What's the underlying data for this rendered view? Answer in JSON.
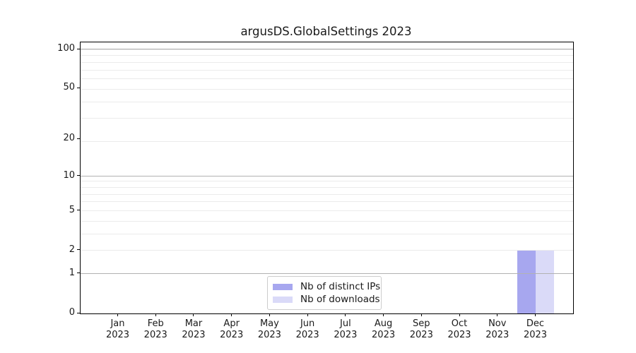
{
  "chart_data": {
    "type": "bar",
    "title": "argusDS.GlobalSettings 2023",
    "categories": [
      "Jan 2023",
      "Feb 2023",
      "Mar 2023",
      "Apr 2023",
      "May 2023",
      "Jun 2023",
      "Jul 2023",
      "Aug 2023",
      "Sep 2023",
      "Oct 2023",
      "Nov 2023",
      "Dec 2023"
    ],
    "series": [
      {
        "name": "Nb of distinct IPs",
        "color": "#a7a7ef",
        "values": [
          0,
          0,
          0,
          0,
          0,
          0,
          0,
          0,
          0,
          0,
          0,
          2
        ]
      },
      {
        "name": "Nb of downloads",
        "color": "#dadaf8",
        "values": [
          0,
          0,
          0,
          0,
          0,
          0,
          0,
          0,
          0,
          0,
          0,
          2
        ]
      }
    ],
    "xlabel": "",
    "ylabel": "",
    "yscale": "log1p",
    "yticks": [
      0,
      1,
      2,
      5,
      10,
      20,
      50,
      100
    ],
    "major_grid_values": [
      1,
      10,
      100
    ],
    "minor_grid_values": [
      2,
      3,
      4,
      5,
      6,
      7,
      8,
      9,
      19,
      29,
      39,
      49,
      59,
      69,
      79,
      89,
      99
    ],
    "ylim": [
      0,
      112
    ],
    "grid": true,
    "legend_position": "lower center"
  },
  "legend": {
    "items": [
      {
        "label": "Nb of distinct IPs",
        "color": "#a7a7ef"
      },
      {
        "label": "Nb of downloads",
        "color": "#dadaf8"
      }
    ]
  }
}
